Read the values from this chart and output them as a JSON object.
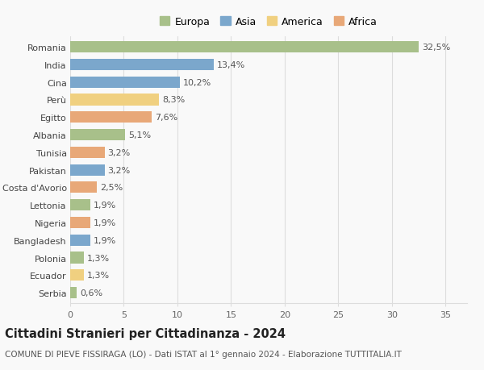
{
  "countries": [
    "Romania",
    "India",
    "Cina",
    "Perù",
    "Egitto",
    "Albania",
    "Tunisia",
    "Pakistan",
    "Costa d'Avorio",
    "Lettonia",
    "Nigeria",
    "Bangladesh",
    "Polonia",
    "Ecuador",
    "Serbia"
  ],
  "values": [
    32.5,
    13.4,
    10.2,
    8.3,
    7.6,
    5.1,
    3.2,
    3.2,
    2.5,
    1.9,
    1.9,
    1.9,
    1.3,
    1.3,
    0.6
  ],
  "labels": [
    "32,5%",
    "13,4%",
    "10,2%",
    "8,3%",
    "7,6%",
    "5,1%",
    "3,2%",
    "3,2%",
    "2,5%",
    "1,9%",
    "1,9%",
    "1,9%",
    "1,3%",
    "1,3%",
    "0,6%"
  ],
  "continents": [
    "Europa",
    "Asia",
    "Asia",
    "America",
    "Africa",
    "Europa",
    "Africa",
    "Asia",
    "Africa",
    "Europa",
    "Africa",
    "Asia",
    "Europa",
    "America",
    "Europa"
  ],
  "colors": {
    "Europa": "#a8c08a",
    "Asia": "#7ba7cc",
    "America": "#f0d080",
    "Africa": "#e8a878"
  },
  "legend_order": [
    "Europa",
    "Asia",
    "America",
    "Africa"
  ],
  "title": "Cittadini Stranieri per Cittadinanza - 2024",
  "subtitle": "COMUNE DI PIEVE FISSIRAGA (LO) - Dati ISTAT al 1° gennaio 2024 - Elaborazione TUTTITALIA.IT",
  "xlim": [
    0,
    37
  ],
  "xticks": [
    0,
    5,
    10,
    15,
    20,
    25,
    30,
    35
  ],
  "bg_color": "#f9f9f9",
  "grid_color": "#dddddd",
  "bar_height": 0.65,
  "label_fontsize": 8,
  "tick_fontsize": 8,
  "title_fontsize": 10.5,
  "subtitle_fontsize": 7.5,
  "legend_fontsize": 9
}
